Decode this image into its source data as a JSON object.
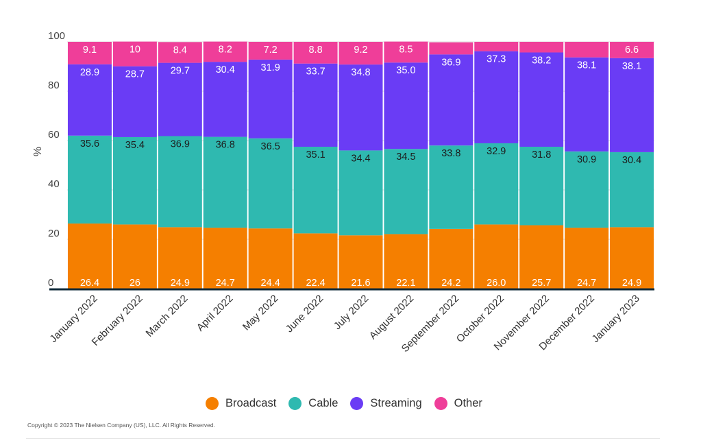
{
  "chart_data": {
    "type": "bar",
    "stacked": true,
    "ylabel": "%",
    "ylim": [
      0,
      100
    ],
    "yticks": [
      0,
      20,
      40,
      60,
      80,
      100
    ],
    "grid": true,
    "legend_position": "bottom",
    "categories": [
      "January 2022",
      "February 2022",
      "March 2022",
      "April 2022",
      "May 2022",
      "June 2022",
      "July 2022",
      "August 2022",
      "September 2022",
      "October 2022",
      "November 2022",
      "December 2022",
      "January 2023"
    ],
    "series": [
      {
        "name": "Broadcast",
        "color": "#f57f00",
        "values": [
          26.4,
          26,
          24.9,
          24.7,
          24.4,
          22.4,
          21.6,
          22.1,
          24.2,
          26.0,
          25.7,
          24.7,
          24.9
        ],
        "labels": [
          "26.4",
          "26",
          "24.9",
          "24.7",
          "24.4",
          "22.4",
          "21.6",
          "22.1",
          "24.2",
          "26.0",
          "25.7",
          "24.7",
          "24.9"
        ]
      },
      {
        "name": "Cable",
        "color": "#2fb9b0",
        "values": [
          35.6,
          35.4,
          36.9,
          36.8,
          36.5,
          35.1,
          34.4,
          34.5,
          33.8,
          32.9,
          31.8,
          30.9,
          30.4
        ],
        "labels": [
          "35.6",
          "35.4",
          "36.9",
          "36.8",
          "36.5",
          "35.1",
          "34.4",
          "34.5",
          "33.8",
          "32.9",
          "31.8",
          "30.9",
          "30.4"
        ]
      },
      {
        "name": "Streaming",
        "color": "#6a3cf5",
        "values": [
          28.9,
          28.7,
          29.7,
          30.4,
          31.9,
          33.7,
          34.8,
          35.0,
          36.9,
          37.3,
          38.2,
          38.1,
          38.1
        ],
        "labels": [
          "28.9",
          "28.7",
          "29.7",
          "30.4",
          "31.9",
          "33.7",
          "34.8",
          "35.0",
          "36.9",
          "37.3",
          "38.2",
          "38.1",
          "38.1"
        ]
      },
      {
        "name": "Other",
        "color": "#ef3e99",
        "values": [
          9.1,
          10,
          8.4,
          8.2,
          7.2,
          8.8,
          9.2,
          8.5,
          4.9,
          3.8,
          4.3,
          6.3,
          6.6
        ],
        "labels": [
          "9.1",
          "10",
          "8.4",
          "8.2",
          "7.2",
          "8.8",
          "9.2",
          "8.5",
          "",
          "",
          "",
          "",
          "6.6"
        ]
      }
    ]
  },
  "legend": {
    "items": [
      {
        "label": "Broadcast",
        "color": "#f57f00"
      },
      {
        "label": "Cable",
        "color": "#2fb9b0"
      },
      {
        "label": "Streaming",
        "color": "#6a3cf5"
      },
      {
        "label": "Other",
        "color": "#ef3e99"
      }
    ]
  },
  "footer": {
    "copyright": "Copyright © 2023 The Nielsen Company (US), LLC. All Rights Reserved."
  }
}
